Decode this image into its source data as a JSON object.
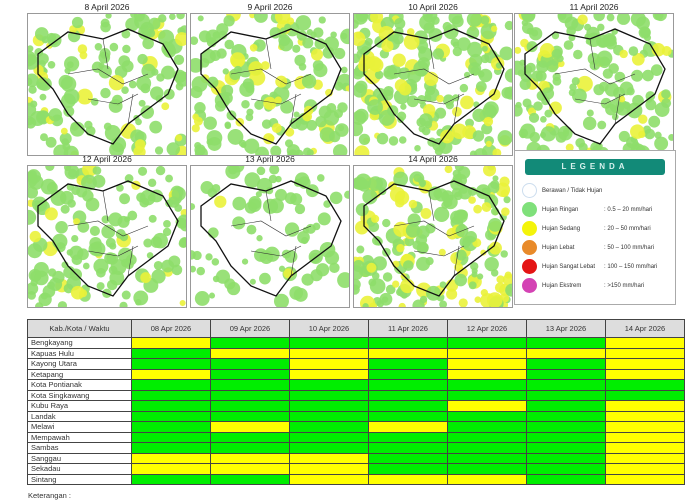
{
  "maps": [
    {
      "title": "8 April 2026"
    },
    {
      "title": "9 April 2026"
    },
    {
      "title": "10 April 2026"
    },
    {
      "title": "11 April 2026"
    },
    {
      "title": "12 April 2026"
    },
    {
      "title": "13 April 2026"
    },
    {
      "title": "14 April 2026"
    }
  ],
  "legend": {
    "title": "LEGENDA",
    "items": [
      {
        "label": "Berawan / Tidak Hujan",
        "range": "",
        "color": "#ffffff"
      },
      {
        "label": "Hujan Ringan",
        "range": ": 0.5 – 20 mm/hari",
        "color": "#7fe07a"
      },
      {
        "label": "Hujan Sedang",
        "range": ": 20 – 50 mm/hari",
        "color": "#f4f40a"
      },
      {
        "label": "Hujan Lebat",
        "range": ": 50 – 100 mm/hari",
        "color": "#e88a2a"
      },
      {
        "label": "Hujan Sangat Lebat",
        "range": ": 100 – 150 mm/hari",
        "color": "#e41414"
      },
      {
        "label": "Hujan Ekstrem",
        "range": ": >150 mm/hari",
        "color": "#d443b4"
      }
    ]
  },
  "table": {
    "header": "Kab./Kota / Waktu",
    "dates": [
      "08 Apr 2026",
      "09 Apr 2026",
      "10 Apr 2026",
      "11 Apr 2026",
      "12 Apr 2026",
      "13 Apr 2026",
      "14 Apr 2026"
    ],
    "colors": {
      "G": "#00ee00",
      "Y": "#ffff00"
    },
    "rows": [
      {
        "name": "Bengkayang",
        "v": "YGGGGGY"
      },
      {
        "name": "Kapuas Hulu",
        "v": "GYYYYYY"
      },
      {
        "name": "Kayong Utara",
        "v": "GGYGYGY"
      },
      {
        "name": "Ketapang",
        "v": "YGYGYGY"
      },
      {
        "name": "Kota Pontianak",
        "v": "GGGGGGG"
      },
      {
        "name": "Kota Singkawang",
        "v": "GGGGGGG"
      },
      {
        "name": "Kubu Raya",
        "v": "GGGGYGY"
      },
      {
        "name": "Landak",
        "v": "GGGGGGY"
      },
      {
        "name": "Melawi",
        "v": "GYGYGGY"
      },
      {
        "name": "Mempawah",
        "v": "GGGGGGY"
      },
      {
        "name": "Sambas",
        "v": "GGGGGGY"
      },
      {
        "name": "Sanggau",
        "v": "YYYGGGY"
      },
      {
        "name": "Sekadau",
        "v": "YYYGGGY"
      },
      {
        "name": "Sintang",
        "v": "GGYYYGY"
      }
    ]
  },
  "note": "Keterangan :"
}
